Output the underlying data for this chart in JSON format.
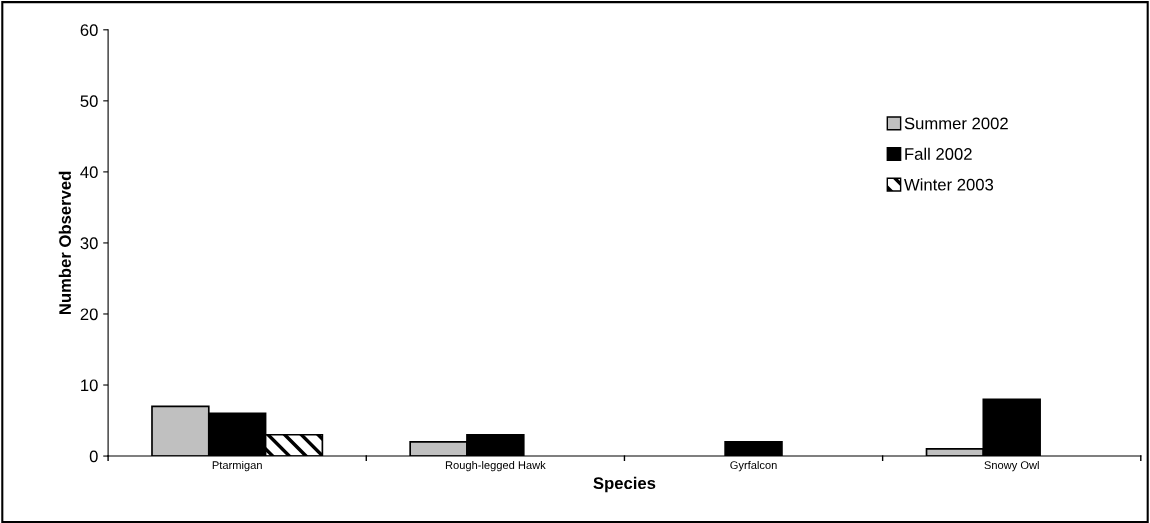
{
  "chart_data": {
    "type": "bar",
    "xlabel": "Species",
    "ylabel": "Number Observed",
    "categories": [
      "Ptarmigan",
      "Rough-legged Hawk",
      "Gyrfalcon",
      "Snowy Owl"
    ],
    "series": [
      {
        "name": "Summer 2002",
        "color": "#c0c0c0",
        "values": [
          7,
          2,
          0,
          1
        ]
      },
      {
        "name": "Fall 2002",
        "color": "#000000",
        "values": [
          6,
          3,
          2,
          8
        ]
      },
      {
        "name": "Winter 2003",
        "color": "#000000",
        "values": [
          3,
          0,
          0,
          0
        ]
      }
    ],
    "ylim": [
      0,
      60
    ],
    "yticks": [
      0,
      10,
      20,
      30,
      40,
      50,
      60
    ],
    "grid": false,
    "legend": "top right"
  }
}
